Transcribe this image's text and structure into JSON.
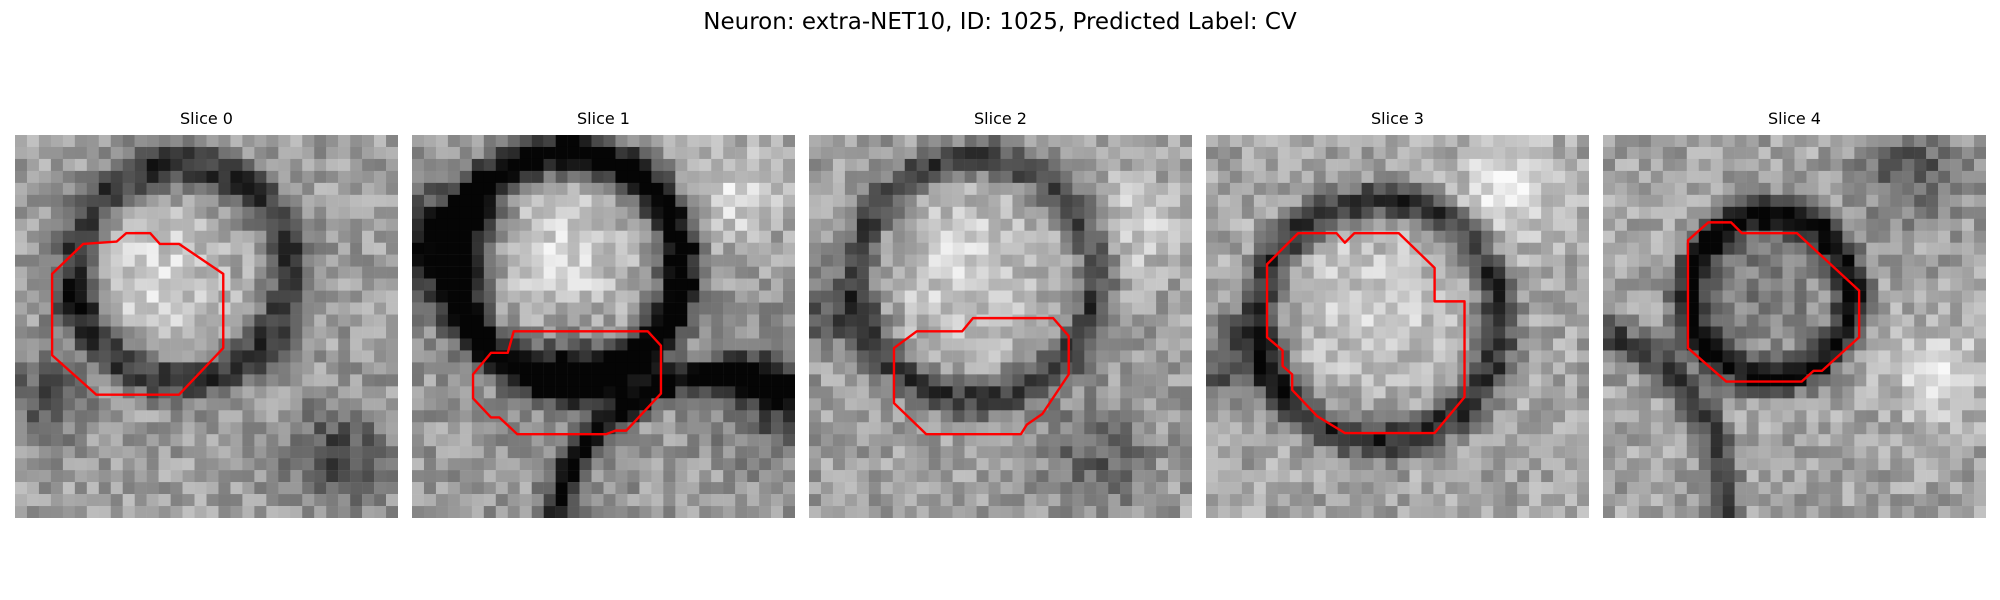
{
  "figure": {
    "title": "Neuron: extra-NET10, ID: 1025, Predicted Label: CV"
  },
  "slices": [
    {
      "title": "Slice 0"
    },
    {
      "title": "Slice 1"
    },
    {
      "title": "Slice 2"
    },
    {
      "title": "Slice 3"
    },
    {
      "title": "Slice 4"
    }
  ],
  "colors": {
    "background": "#ffffff",
    "contour": "#ff0000",
    "colormap": "grayscale"
  }
}
